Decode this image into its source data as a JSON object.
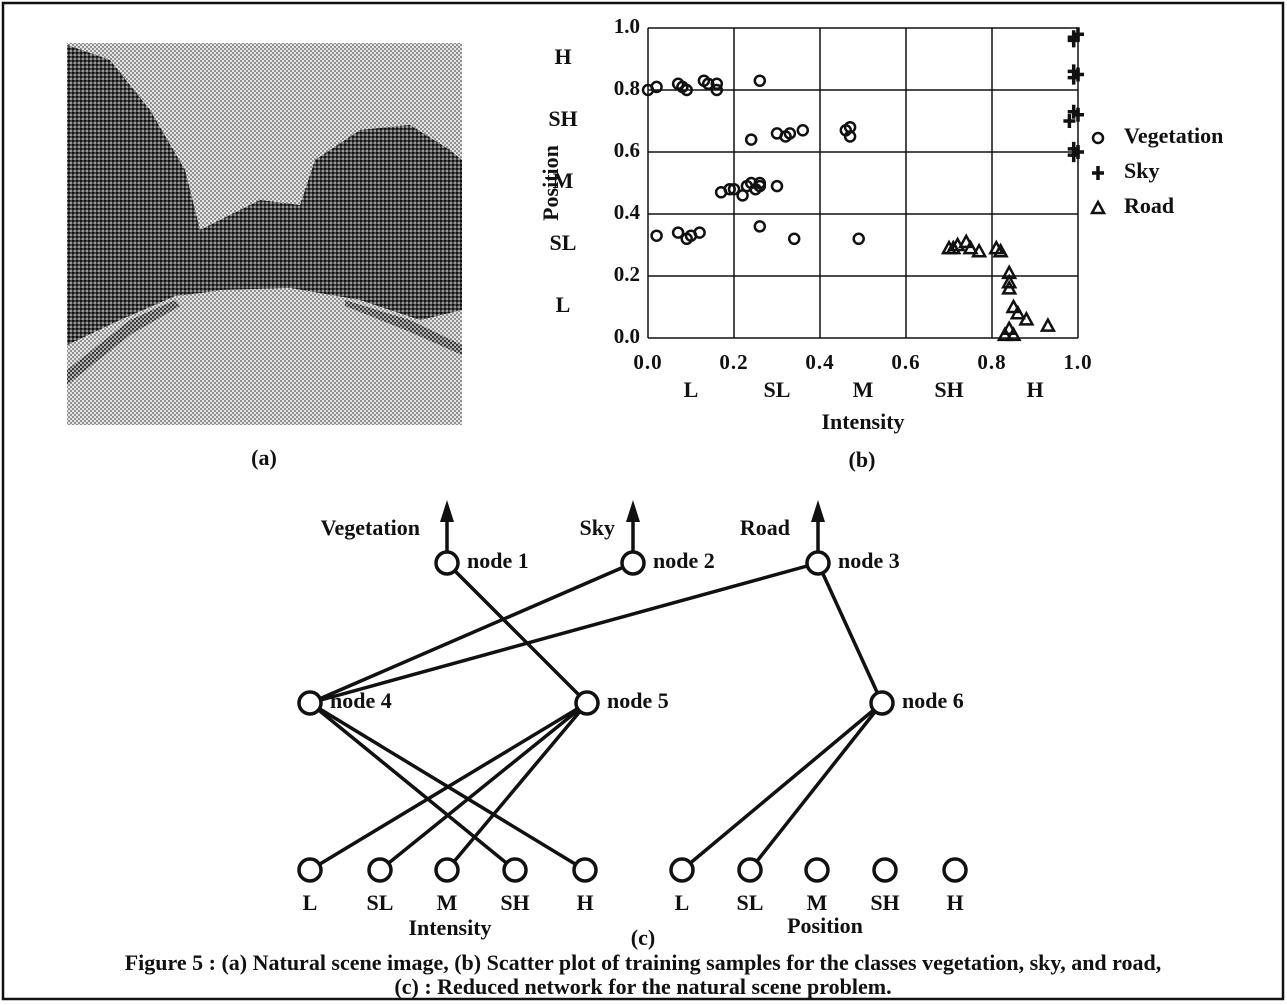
{
  "image_label": "(a)",
  "chart_data": {
    "type": "scatter",
    "panel_label": "(b)",
    "x_label": "Intensity",
    "y_label": "Position",
    "xlim": [
      0,
      1
    ],
    "ylim": [
      0,
      1
    ],
    "xticks": [
      {
        "value": 0,
        "label": "0.0"
      },
      0.2,
      0.4,
      0.6,
      0.8,
      {
        "value": 1,
        "label": "1.0"
      }
    ],
    "yticks": [
      {
        "value": 0,
        "label": "0.0"
      },
      0.2,
      0.4,
      0.6,
      0.8,
      {
        "value": 1,
        "label": "1.0"
      }
    ],
    "x_regions": [
      "L",
      "SL",
      "M",
      "SH",
      "H"
    ],
    "y_regions": [
      "L",
      "SL",
      "M",
      "SH",
      "H"
    ],
    "grid": true,
    "legend": "right",
    "series": [
      {
        "name": "Vegetation",
        "marker": "circle",
        "color": "#111",
        "x": [
          0.0,
          0.02,
          0.07,
          0.08,
          0.09,
          0.13,
          0.14,
          0.16,
          0.16,
          0.26,
          0.24,
          0.3,
          0.32,
          0.33,
          0.36,
          0.46,
          0.47,
          0.47,
          0.17,
          0.19,
          0.2,
          0.22,
          0.23,
          0.24,
          0.25,
          0.26,
          0.26,
          0.3,
          0.02,
          0.07,
          0.09,
          0.1,
          0.12,
          0.26,
          0.34,
          0.49
        ],
        "values": [
          0.8,
          0.81,
          0.82,
          0.81,
          0.8,
          0.83,
          0.82,
          0.82,
          0.8,
          0.83,
          0.64,
          0.66,
          0.65,
          0.66,
          0.67,
          0.67,
          0.68,
          0.65,
          0.47,
          0.48,
          0.48,
          0.46,
          0.49,
          0.5,
          0.48,
          0.5,
          0.49,
          0.49,
          0.33,
          0.34,
          0.32,
          0.33,
          0.34,
          0.36,
          0.32,
          0.32
        ]
      },
      {
        "name": "Sky",
        "marker": "plus",
        "color": "#111",
        "x": [
          0.99,
          1.0,
          0.99,
          0.99,
          1.0,
          0.99,
          0.99,
          1.0,
          0.98,
          0.99,
          1.0,
          0.99
        ],
        "values": [
          0.97,
          0.98,
          0.96,
          0.86,
          0.85,
          0.84,
          0.73,
          0.72,
          0.7,
          0.61,
          0.6,
          0.59
        ]
      },
      {
        "name": "Road",
        "marker": "triangle",
        "color": "#111",
        "x": [
          0.7,
          0.71,
          0.72,
          0.74,
          0.75,
          0.77,
          0.81,
          0.82,
          0.84,
          0.84,
          0.84,
          0.85,
          0.86,
          0.88,
          0.84,
          0.83,
          0.85,
          0.93
        ],
        "values": [
          0.29,
          0.29,
          0.3,
          0.31,
          0.29,
          0.28,
          0.29,
          0.28,
          0.21,
          0.18,
          0.16,
          0.1,
          0.08,
          0.06,
          0.03,
          0.01,
          0.01,
          0.04
        ]
      }
    ]
  },
  "network": {
    "panel_label": "(c)",
    "outputs": [
      {
        "node": "node 1",
        "label": "Vegetation"
      },
      {
        "node": "node 2",
        "label": "Sky"
      },
      {
        "node": "node 3",
        "label": "Road"
      }
    ],
    "hidden": [
      "node 4",
      "node 5",
      "node 6"
    ],
    "inputs": [
      {
        "group": "Intensity",
        "terms": [
          "L",
          "SL",
          "M",
          "SH",
          "H"
        ]
      },
      {
        "group": "Position",
        "terms": [
          "L",
          "SL",
          "M",
          "SH",
          "H"
        ]
      }
    ]
  },
  "caption": [
    "Figure 5 : (a) Natural scene image, (b) Scatter plot of training samples for the classes vegetation, sky, and road,",
    "(c) : Reduced network for the natural scene problem."
  ]
}
